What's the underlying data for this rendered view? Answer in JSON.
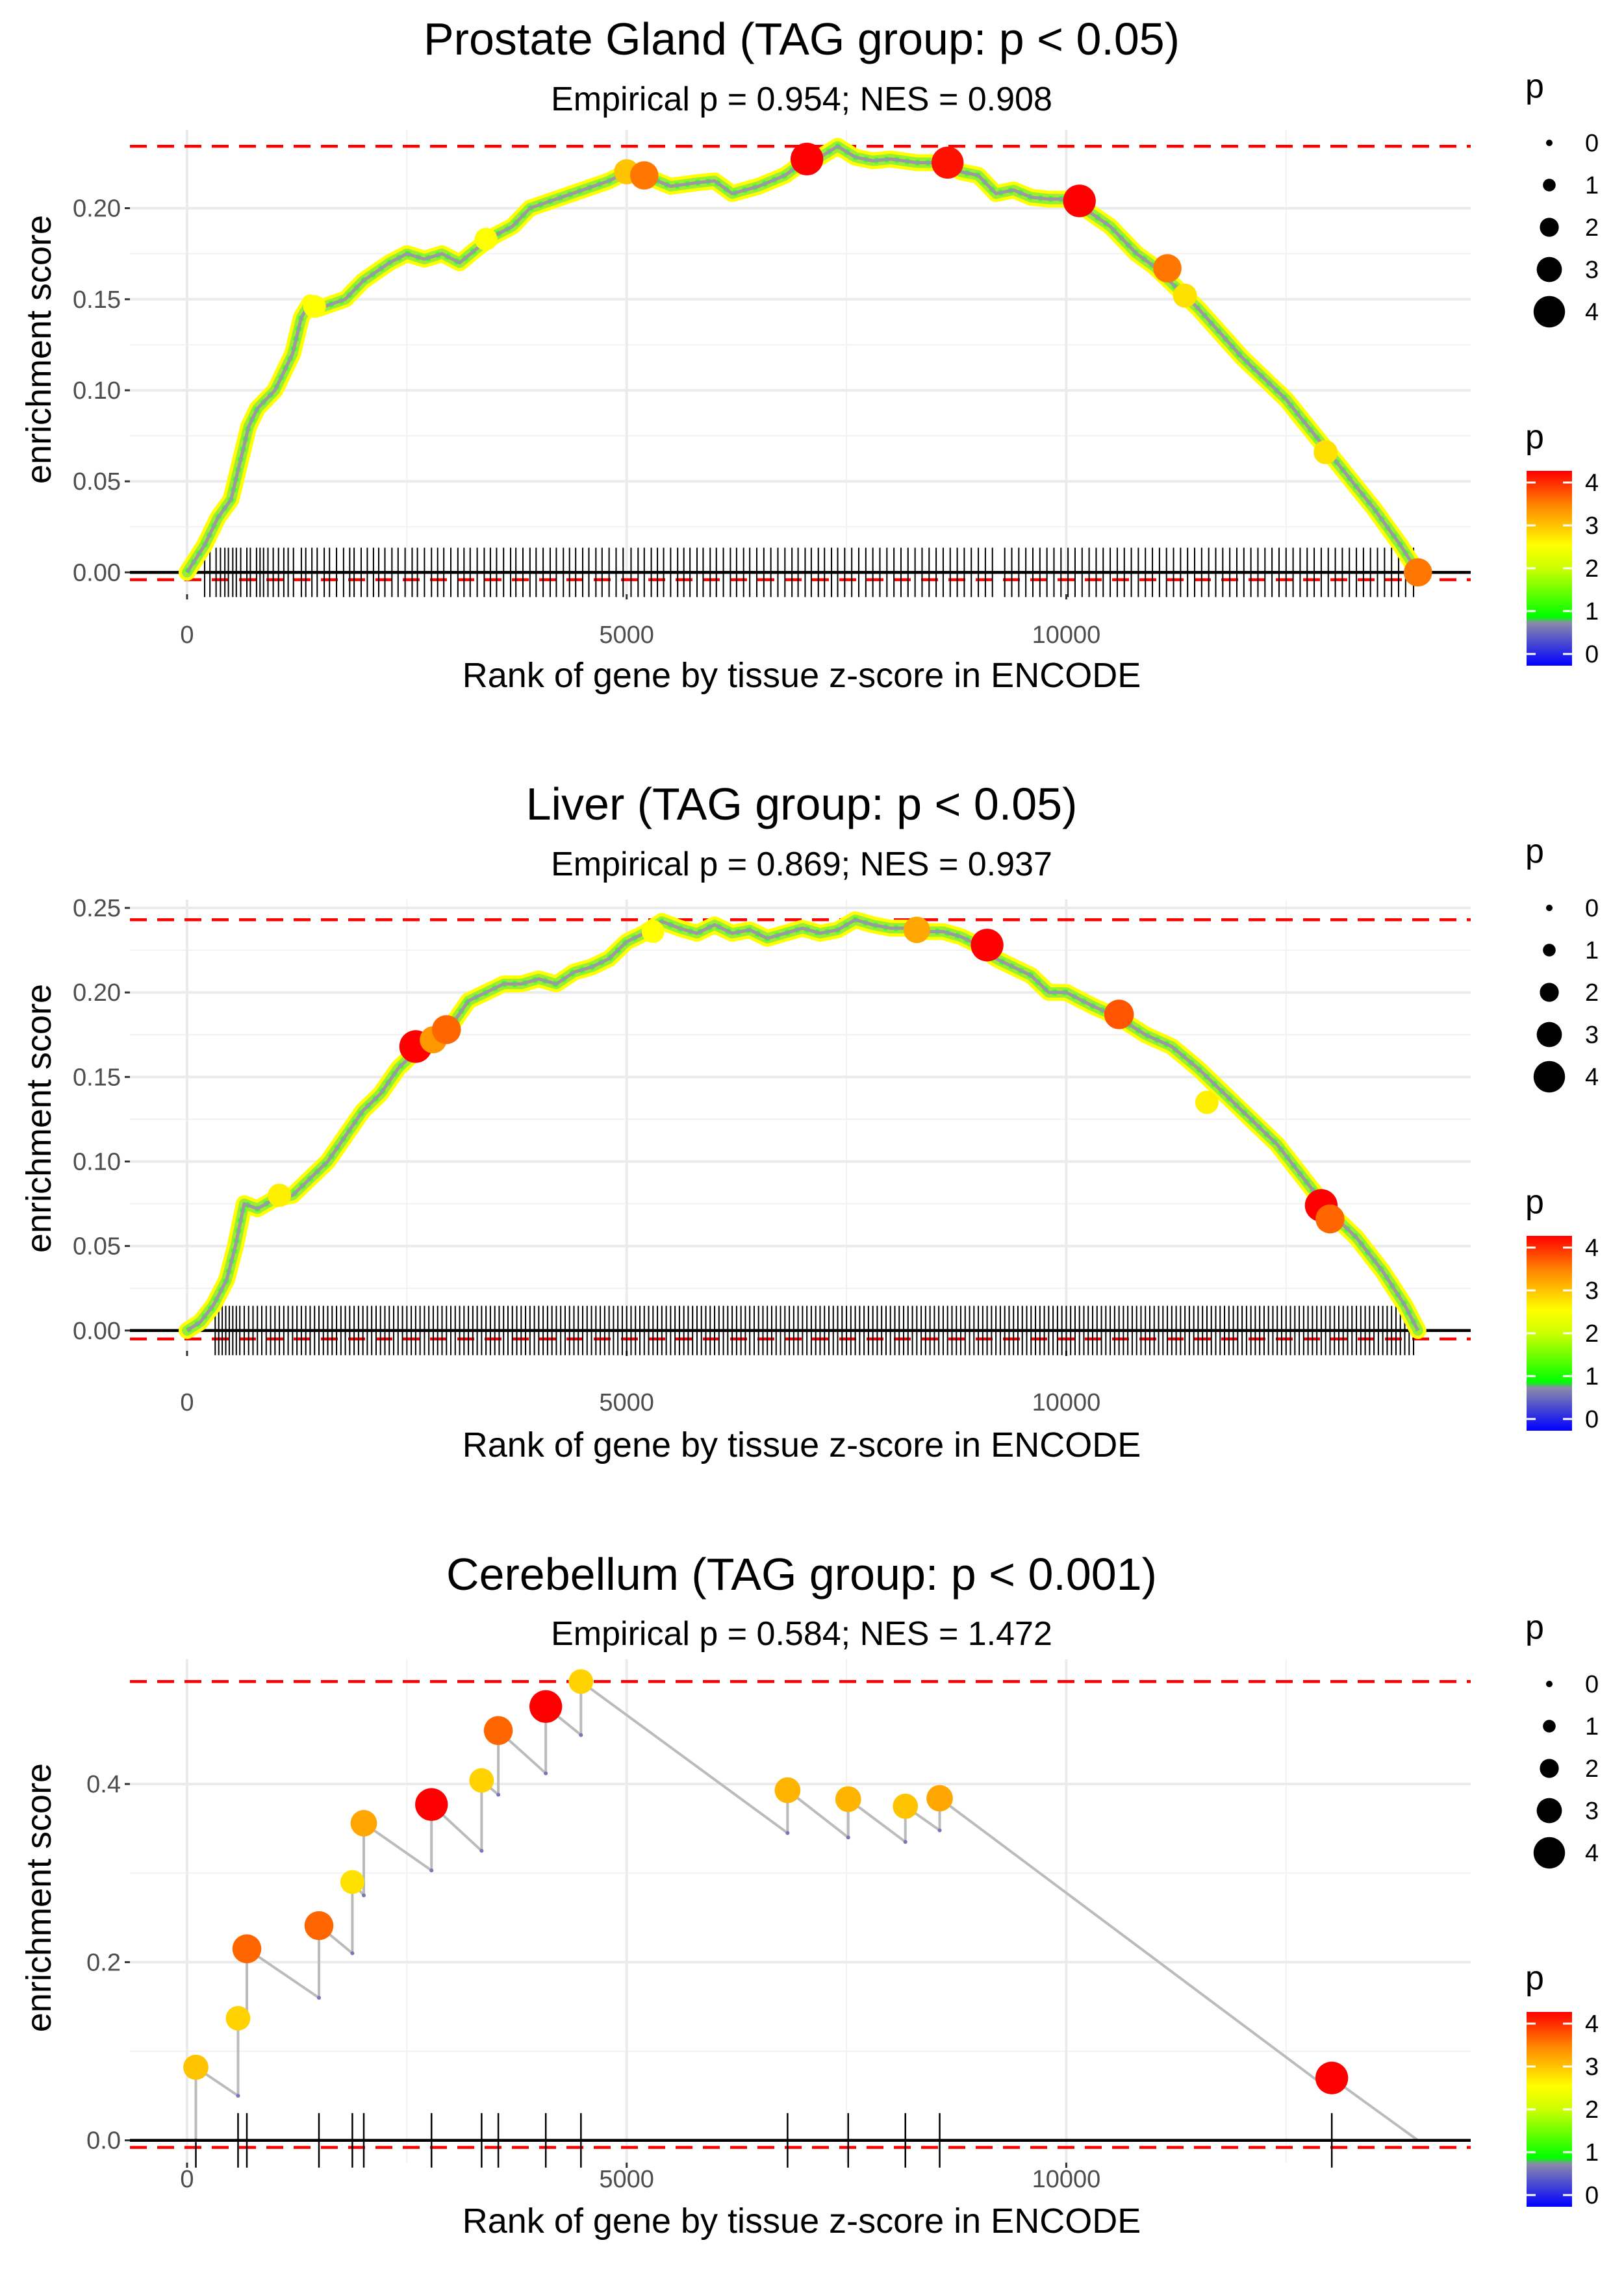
{
  "chart_data": [
    {
      "type": "line",
      "title": "Prostate Gland (TAG group: p < 0.05)",
      "subtitle": "Empirical p = 0.954; NES = 0.908",
      "xlabel": "Rank of gene by tissue z-score in ENCODE",
      "ylabel": "enrichment score",
      "xlim": [
        -650,
        14600
      ],
      "ylim": [
        -0.012,
        0.243
      ],
      "xticks": [
        0,
        5000,
        10000
      ],
      "xtick_labels": [
        "0",
        "5000",
        "10000"
      ],
      "yticks": [
        0.0,
        0.05,
        0.1,
        0.15,
        0.2
      ],
      "ytick_labels": [
        "0.00",
        "0.05",
        "0.10",
        "0.15",
        "0.20"
      ],
      "max_es": 0.234,
      "min_es": -0.004,
      "n_genes": 14000,
      "curve_x": [
        0,
        200,
        350,
        500,
        600,
        700,
        800,
        900,
        1000,
        1100,
        1200,
        1300,
        1400,
        1500,
        1800,
        2000,
        2300,
        2500,
        2700,
        2900,
        3100,
        3300,
        3500,
        3700,
        3900,
        4200,
        4500,
        4800,
        5000,
        5200,
        5500,
        5800,
        6000,
        6200,
        6500,
        6800,
        7000,
        7200,
        7400,
        7600,
        7800,
        8000,
        8300,
        8600,
        8800,
        9000,
        9200,
        9400,
        9600,
        9800,
        10000,
        10200,
        10500,
        10800,
        11000,
        11500,
        12000,
        12500,
        13000,
        13500,
        13800,
        14000
      ],
      "curve_y": [
        0.0,
        0.015,
        0.03,
        0.04,
        0.06,
        0.08,
        0.09,
        0.095,
        0.1,
        0.11,
        0.12,
        0.14,
        0.148,
        0.145,
        0.15,
        0.16,
        0.17,
        0.175,
        0.172,
        0.175,
        0.17,
        0.178,
        0.185,
        0.19,
        0.2,
        0.205,
        0.21,
        0.215,
        0.22,
        0.218,
        0.212,
        0.214,
        0.215,
        0.208,
        0.212,
        0.218,
        0.225,
        0.228,
        0.234,
        0.228,
        0.226,
        0.227,
        0.225,
        0.225,
        0.22,
        0.218,
        0.208,
        0.21,
        0.206,
        0.205,
        0.205,
        0.2,
        0.19,
        0.175,
        0.168,
        0.145,
        0.118,
        0.095,
        0.065,
        0.035,
        0.015,
        0.0
      ],
      "hits": [
        200,
        260,
        330,
        380,
        430,
        470,
        520,
        560,
        610,
        680,
        720,
        790,
        830,
        870,
        920,
        980,
        1040,
        1100,
        1150,
        1210,
        1300,
        1350,
        1420,
        1480,
        1560,
        1620,
        1700,
        1780,
        1850,
        1900,
        1980,
        2050,
        2120,
        2180,
        2250,
        2330,
        2400,
        2480,
        2560,
        2620,
        2700,
        2780,
        2850,
        2920,
        3000,
        3080,
        3150,
        3220,
        3300,
        3380,
        3450,
        3520,
        3600,
        3680,
        3740,
        3820,
        3900,
        3970,
        4050,
        4130,
        4200,
        4280,
        4350,
        4420,
        4500,
        4570,
        4650,
        4720,
        4800,
        4880,
        4960,
        5050,
        5130,
        5200,
        5280,
        5350,
        5420,
        5500,
        5580,
        5650,
        5720,
        5800,
        5870,
        5950,
        6020,
        6100,
        6180,
        6250,
        6330,
        6400,
        6480,
        6560,
        6640,
        6720,
        6800,
        6880,
        6950,
        7030,
        7100,
        7180,
        7250,
        7330,
        7400,
        7480,
        7560,
        7640,
        7720,
        7800,
        7880,
        7960,
        8040,
        8120,
        8200,
        8280,
        8360,
        8440,
        8520,
        8600,
        8680,
        8760,
        8840,
        8920,
        9000,
        9080,
        9160,
        9300,
        9380,
        9460,
        9540,
        9620,
        9700,
        9780,
        9860,
        9940,
        10020,
        10100,
        10180,
        10260,
        10340,
        10420,
        10500,
        10580,
        10660,
        10740,
        10820,
        10900,
        10980,
        11060,
        11140,
        11220,
        11300,
        11380,
        11460,
        11540,
        11620,
        11700,
        11780,
        11860,
        11940,
        12020,
        12100,
        12180,
        12260,
        12340,
        12420,
        12500,
        12580,
        12660,
        12740,
        12820,
        12900,
        12980,
        13060,
        13140,
        13220,
        13300,
        13380,
        13460,
        13540,
        13620,
        13700,
        13780,
        13860,
        13950
      ],
      "highlights": [
        {
          "x": 5000,
          "y": 0.22,
          "p": 3.0
        },
        {
          "x": 5200,
          "y": 0.218,
          "p": 3.5
        },
        {
          "x": 7050,
          "y": 0.227,
          "p": 4.2
        },
        {
          "x": 8650,
          "y": 0.225,
          "p": 4.1
        },
        {
          "x": 10150,
          "y": 0.204,
          "p": 4.2
        },
        {
          "x": 11150,
          "y": 0.167,
          "p": 3.5
        },
        {
          "x": 11350,
          "y": 0.152,
          "p": 2.8
        },
        {
          "x": 12950,
          "y": 0.066,
          "p": 2.8
        },
        {
          "x": 14000,
          "y": 0.0,
          "p": 3.5
        },
        {
          "x": 3400,
          "y": 0.183,
          "p": 2.6
        },
        {
          "x": 1450,
          "y": 0.146,
          "p": 2.6
        }
      ],
      "legend": {
        "size_title": "p",
        "size_labels": [
          "0",
          "1",
          "2",
          "3",
          "4"
        ],
        "color_title": "p",
        "color_labels": [
          "4",
          "3",
          "2",
          "1",
          "0"
        ]
      }
    },
    {
      "type": "line",
      "title": "Liver (TAG group: p < 0.05)",
      "subtitle": "Empirical p = 0.869; NES = 0.937",
      "xlabel": "Rank of gene by tissue z-score in ENCODE",
      "ylabel": "enrichment score",
      "xlim": [
        -650,
        14600
      ],
      "ylim": [
        -0.012,
        0.255
      ],
      "xticks": [
        0,
        5000,
        10000
      ],
      "xtick_labels": [
        "0",
        "5000",
        "10000"
      ],
      "yticks": [
        0.0,
        0.05,
        0.1,
        0.15,
        0.2,
        0.25
      ],
      "ytick_labels": [
        "0.00",
        "0.05",
        "0.10",
        "0.15",
        "0.20",
        "0.25"
      ],
      "max_es": 0.243,
      "min_es": -0.005,
      "n_genes": 14000,
      "curve_x": [
        0,
        150,
        300,
        450,
        550,
        650,
        800,
        1000,
        1200,
        1400,
        1600,
        1800,
        2000,
        2200,
        2400,
        2600,
        2800,
        3000,
        3200,
        3400,
        3600,
        3800,
        4000,
        4200,
        4400,
        4600,
        4800,
        5000,
        5200,
        5400,
        5600,
        5800,
        6000,
        6200,
        6400,
        6600,
        6800,
        7000,
        7200,
        7400,
        7600,
        7800,
        8000,
        8200,
        8400,
        8600,
        8800,
        9000,
        9200,
        9400,
        9600,
        9800,
        10000,
        10300,
        10600,
        10900,
        11200,
        11500,
        11800,
        12100,
        12400,
        12700,
        13000,
        13300,
        13600,
        13850,
        14000
      ],
      "curve_y": [
        0.0,
        0.005,
        0.015,
        0.03,
        0.05,
        0.075,
        0.072,
        0.078,
        0.08,
        0.09,
        0.1,
        0.115,
        0.13,
        0.14,
        0.155,
        0.165,
        0.17,
        0.18,
        0.195,
        0.2,
        0.205,
        0.205,
        0.208,
        0.205,
        0.212,
        0.215,
        0.22,
        0.23,
        0.235,
        0.242,
        0.238,
        0.235,
        0.24,
        0.235,
        0.237,
        0.232,
        0.235,
        0.238,
        0.235,
        0.237,
        0.243,
        0.24,
        0.238,
        0.238,
        0.236,
        0.236,
        0.233,
        0.228,
        0.22,
        0.215,
        0.21,
        0.2,
        0.2,
        0.192,
        0.185,
        0.175,
        0.168,
        0.155,
        0.14,
        0.125,
        0.11,
        0.09,
        0.07,
        0.055,
        0.035,
        0.015,
        0.0
      ],
      "hits": [
        320,
        360,
        400,
        440,
        480,
        520,
        560,
        600,
        650,
        700,
        750,
        800,
        850,
        900,
        950,
        1000,
        1050,
        1100,
        1150,
        1200,
        1250,
        1300,
        1350,
        1400,
        1450,
        1500,
        1550,
        1600,
        1650,
        1700,
        1750,
        1800,
        1850,
        1900,
        1950,
        2000,
        2050,
        2100,
        2150,
        2200,
        2250,
        2300,
        2350,
        2400,
        2450,
        2500,
        2550,
        2600,
        2650,
        2700,
        2750,
        2800,
        2850,
        2900,
        2950,
        3000,
        3050,
        3100,
        3150,
        3200,
        3250,
        3300,
        3350,
        3400,
        3450,
        3500,
        3550,
        3600,
        3650,
        3700,
        3750,
        3800,
        3850,
        3900,
        3950,
        4000,
        4050,
        4100,
        4150,
        4200,
        4250,
        4300,
        4350,
        4400,
        4450,
        4500,
        4550,
        4600,
        4650,
        4700,
        4750,
        4800,
        4850,
        4900,
        4950,
        5000,
        5050,
        5100,
        5150,
        5200,
        5250,
        5300,
        5350,
        5400,
        5450,
        5500,
        5550,
        5600,
        5650,
        5700,
        5750,
        5800,
        5850,
        5900,
        5950,
        6000,
        6050,
        6100,
        6150,
        6200,
        6250,
        6300,
        6350,
        6400,
        6450,
        6500,
        6550,
        6600,
        6650,
        6700,
        6750,
        6800,
        6850,
        6900,
        6950,
        7000,
        7050,
        7100,
        7150,
        7200,
        7250,
        7300,
        7350,
        7400,
        7450,
        7500,
        7550,
        7600,
        7650,
        7700,
        7750,
        7800,
        7850,
        7900,
        7950,
        8000,
        8050,
        8100,
        8150,
        8200,
        8250,
        8300,
        8350,
        8400,
        8450,
        8500,
        8550,
        8600,
        8650,
        8700,
        8750,
        8800,
        8850,
        8900,
        8950,
        9000,
        9050,
        9100,
        9150,
        9200,
        9250,
        9300,
        9350,
        9400,
        9450,
        9500,
        9550,
        9600,
        9650,
        9700,
        9750,
        9800,
        9850,
        9900,
        9950,
        10000,
        10050,
        10100,
        10150,
        10200,
        10250,
        10300,
        10350,
        10400,
        10450,
        10500,
        10550,
        10600,
        10650,
        10700,
        10750,
        10800,
        10850,
        10900,
        10950,
        11000,
        11050,
        11100,
        11150,
        11200,
        11250,
        11300,
        11350,
        11400,
        11450,
        11500,
        11550,
        11600,
        11650,
        11700,
        11750,
        11800,
        11850,
        11900,
        11950,
        12000,
        12050,
        12100,
        12150,
        12200,
        12250,
        12300,
        12350,
        12400,
        12450,
        12500,
        12550,
        12600,
        12650,
        12700,
        12750,
        12800,
        12850,
        12900,
        12950,
        13000,
        13050,
        13100,
        13150,
        13200,
        13250,
        13300,
        13350,
        13400,
        13450,
        13500,
        13550,
        13600,
        13650,
        13700,
        13750,
        13800,
        13850,
        13900,
        13950
      ],
      "highlights": [
        {
          "x": 2600,
          "y": 0.168,
          "p": 4.2
        },
        {
          "x": 2800,
          "y": 0.172,
          "p": 3.3
        },
        {
          "x": 2950,
          "y": 0.178,
          "p": 3.6
        },
        {
          "x": 8300,
          "y": 0.237,
          "p": 3.2
        },
        {
          "x": 9100,
          "y": 0.228,
          "p": 4.2
        },
        {
          "x": 10600,
          "y": 0.187,
          "p": 3.7
        },
        {
          "x": 12900,
          "y": 0.074,
          "p": 4.2
        },
        {
          "x": 13000,
          "y": 0.066,
          "p": 3.6
        },
        {
          "x": 1050,
          "y": 0.08,
          "p": 2.7
        },
        {
          "x": 5300,
          "y": 0.236,
          "p": 2.6
        },
        {
          "x": 11600,
          "y": 0.135,
          "p": 2.7
        }
      ],
      "legend": {
        "size_title": "p",
        "size_labels": [
          "0",
          "1",
          "2",
          "3",
          "4"
        ],
        "color_title": "p",
        "color_labels": [
          "4",
          "3",
          "2",
          "1",
          "0"
        ]
      }
    },
    {
      "type": "line",
      "title": "Cerebellum (TAG group: p < 0.001)",
      "subtitle": "Empirical p = 0.584; NES = 1.472",
      "xlabel": "Rank of gene by tissue z-score in ENCODE",
      "ylabel": "enrichment score",
      "xlim": [
        -650,
        14600
      ],
      "ylim": [
        -0.025,
        0.54
      ],
      "xticks": [
        0,
        5000,
        10000
      ],
      "xtick_labels": [
        "0",
        "5000",
        "10000"
      ],
      "yticks": [
        0.0,
        0.2,
        0.4
      ],
      "ytick_labels": [
        "0.0",
        "0.2",
        "0.4"
      ],
      "max_es": 0.515,
      "min_es": -0.008,
      "n_genes": 14000,
      "steps": [
        {
          "x": 100,
          "before": 0.0,
          "after": 0.082,
          "p": 3.0
        },
        {
          "x": 580,
          "before": 0.05,
          "after": 0.137,
          "p": 2.9
        },
        {
          "x": 680,
          "before": 0.132,
          "after": 0.215,
          "p": 3.6
        },
        {
          "x": 1500,
          "before": 0.16,
          "after": 0.241,
          "p": 3.6
        },
        {
          "x": 1880,
          "before": 0.21,
          "after": 0.29,
          "p": 2.8
        },
        {
          "x": 2010,
          "before": 0.275,
          "after": 0.356,
          "p": 3.2
        },
        {
          "x": 2780,
          "before": 0.303,
          "after": 0.377,
          "p": 4.2
        },
        {
          "x": 3350,
          "before": 0.325,
          "after": 0.404,
          "p": 2.9
        },
        {
          "x": 3540,
          "before": 0.388,
          "after": 0.46,
          "p": 3.6
        },
        {
          "x": 4080,
          "before": 0.412,
          "after": 0.487,
          "p": 4.2
        },
        {
          "x": 4480,
          "before": 0.455,
          "after": 0.515,
          "p": 2.9
        },
        {
          "x": 6830,
          "before": 0.345,
          "after": 0.393,
          "p": 3.1
        },
        {
          "x": 7520,
          "before": 0.34,
          "after": 0.383,
          "p": 3.1
        },
        {
          "x": 8170,
          "before": 0.335,
          "after": 0.375,
          "p": 3.0
        },
        {
          "x": 8560,
          "before": 0.348,
          "after": 0.384,
          "p": 3.2
        },
        {
          "x": 13020,
          "before": 0.055,
          "after": 0.07,
          "p": 4.2
        }
      ],
      "end_x": 14000,
      "legend": {
        "size_title": "p",
        "size_labels": [
          "0",
          "1",
          "2",
          "3",
          "4"
        ],
        "color_title": "p",
        "color_labels": [
          "4",
          "3",
          "2",
          "1",
          "0"
        ]
      }
    }
  ]
}
